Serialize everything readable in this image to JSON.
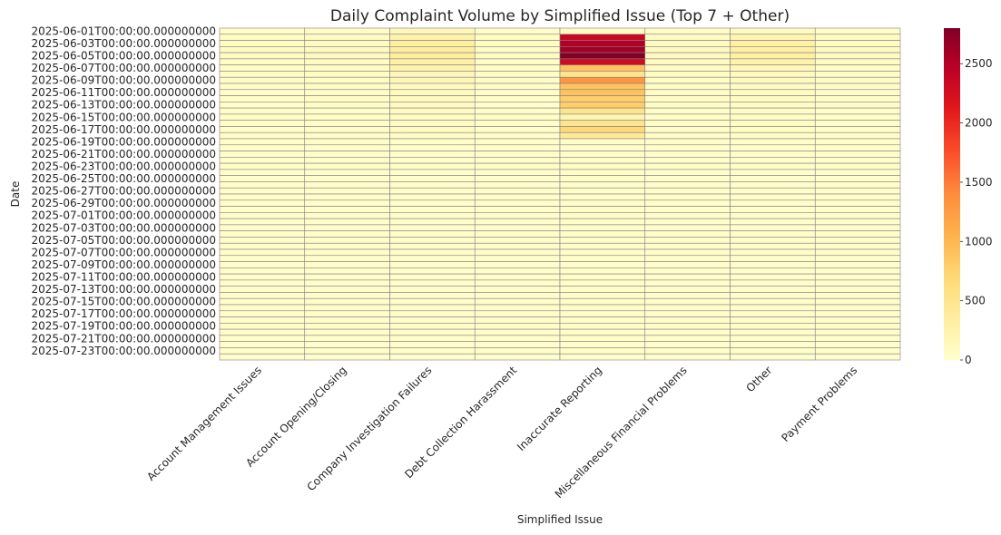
{
  "chart_data": {
    "type": "heatmap",
    "title": "Daily Complaint Volume by Simplified Issue (Top 7 + Other)",
    "xlabel": "Simplified Issue",
    "ylabel": "Date",
    "categories": [
      "Account Management Issues",
      "Account Opening/Closing",
      "Company Investigation Failures",
      "Debt Collection Harassment",
      "Inaccurate Reporting",
      "Miscellaneous Financial Problems",
      "Other",
      "Payment Problems"
    ],
    "dates": [
      "2025-06-01",
      "2025-06-02",
      "2025-06-03",
      "2025-06-04",
      "2025-06-05",
      "2025-06-06",
      "2025-06-07",
      "2025-06-08",
      "2025-06-09",
      "2025-06-10",
      "2025-06-11",
      "2025-06-12",
      "2025-06-13",
      "2025-06-14",
      "2025-06-15",
      "2025-06-16",
      "2025-06-17",
      "2025-06-18",
      "2025-06-19",
      "2025-06-20",
      "2025-06-21",
      "2025-06-22",
      "2025-06-23",
      "2025-06-24",
      "2025-06-25",
      "2025-06-26",
      "2025-06-27",
      "2025-06-28",
      "2025-06-29",
      "2025-06-30",
      "2025-07-01",
      "2025-07-02",
      "2025-07-03",
      "2025-07-04",
      "2025-07-05",
      "2025-07-06",
      "2025-07-07",
      "2025-07-08",
      "2025-07-09",
      "2025-07-10",
      "2025-07-11",
      "2025-07-12",
      "2025-07-13",
      "2025-07-14",
      "2025-07-15",
      "2025-07-16",
      "2025-07-17",
      "2025-07-18",
      "2025-07-19",
      "2025-07-20",
      "2025-07-21",
      "2025-07-22",
      "2025-07-23",
      "2025-07-24"
    ],
    "ytick_labels": [
      "2025-06-01T00:00:00.000000000",
      "2025-06-03T00:00:00.000000000",
      "2025-06-05T00:00:00.000000000",
      "2025-06-07T00:00:00.000000000",
      "2025-06-09T00:00:00.000000000",
      "2025-06-11T00:00:00.000000000",
      "2025-06-13T00:00:00.000000000",
      "2025-06-15T00:00:00.000000000",
      "2025-06-17T00:00:00.000000000",
      "2025-06-19T00:00:00.000000000",
      "2025-06-21T00:00:00.000000000",
      "2025-06-23T00:00:00.000000000",
      "2025-06-25T00:00:00.000000000",
      "2025-06-27T00:00:00.000000000",
      "2025-06-29T00:00:00.000000000",
      "2025-07-01T00:00:00.000000000",
      "2025-07-03T00:00:00.000000000",
      "2025-07-05T00:00:00.000000000",
      "2025-07-07T00:00:00.000000000",
      "2025-07-09T00:00:00.000000000",
      "2025-07-11T00:00:00.000000000",
      "2025-07-13T00:00:00.000000000",
      "2025-07-15T00:00:00.000000000",
      "2025-07-17T00:00:00.000000000",
      "2025-07-19T00:00:00.000000000",
      "2025-07-21T00:00:00.000000000",
      "2025-07-23T00:00:00.000000000"
    ],
    "values": [
      [
        40,
        60,
        150,
        40,
        90,
        60,
        90,
        40
      ],
      [
        60,
        80,
        250,
        60,
        2350,
        80,
        220,
        70
      ],
      [
        70,
        90,
        350,
        60,
        2500,
        90,
        300,
        80
      ],
      [
        70,
        90,
        350,
        60,
        2600,
        90,
        300,
        80
      ],
      [
        70,
        90,
        350,
        60,
        2800,
        90,
        300,
        80
      ],
      [
        60,
        80,
        300,
        50,
        2300,
        80,
        250,
        70
      ],
      [
        50,
        70,
        250,
        50,
        900,
        70,
        150,
        60
      ],
      [
        40,
        60,
        150,
        40,
        500,
        60,
        100,
        50
      ],
      [
        40,
        60,
        150,
        40,
        1300,
        60,
        100,
        50
      ],
      [
        30,
        50,
        100,
        30,
        900,
        50,
        80,
        40
      ],
      [
        30,
        50,
        100,
        30,
        900,
        50,
        80,
        40
      ],
      [
        30,
        50,
        100,
        30,
        800,
        50,
        80,
        40
      ],
      [
        30,
        50,
        100,
        30,
        800,
        50,
        80,
        40
      ],
      [
        20,
        30,
        80,
        20,
        500,
        30,
        60,
        30
      ],
      [
        20,
        30,
        60,
        20,
        200,
        30,
        50,
        20
      ],
      [
        20,
        30,
        80,
        20,
        500,
        30,
        60,
        30
      ],
      [
        20,
        30,
        80,
        20,
        700,
        30,
        60,
        30
      ],
      [
        20,
        30,
        60,
        20,
        400,
        30,
        50,
        20
      ],
      [
        10,
        10,
        20,
        10,
        30,
        10,
        20,
        10
      ],
      [
        10,
        10,
        20,
        10,
        30,
        10,
        20,
        10
      ],
      [
        10,
        10,
        10,
        10,
        20,
        10,
        10,
        10
      ],
      [
        10,
        10,
        10,
        10,
        20,
        10,
        10,
        10
      ],
      [
        10,
        10,
        10,
        10,
        20,
        10,
        10,
        10
      ],
      [
        10,
        10,
        10,
        10,
        20,
        10,
        10,
        10
      ],
      [
        10,
        10,
        10,
        10,
        20,
        10,
        10,
        10
      ],
      [
        10,
        10,
        10,
        10,
        20,
        10,
        10,
        10
      ],
      [
        10,
        10,
        10,
        10,
        20,
        10,
        10,
        10
      ],
      [
        10,
        10,
        10,
        10,
        20,
        10,
        10,
        10
      ],
      [
        10,
        10,
        10,
        10,
        20,
        10,
        10,
        10
      ],
      [
        10,
        10,
        10,
        10,
        20,
        10,
        10,
        10
      ],
      [
        10,
        10,
        10,
        10,
        20,
        10,
        10,
        10
      ],
      [
        10,
        10,
        10,
        10,
        20,
        10,
        10,
        10
      ],
      [
        10,
        10,
        10,
        10,
        20,
        10,
        10,
        10
      ],
      [
        10,
        10,
        10,
        10,
        20,
        10,
        10,
        10
      ],
      [
        10,
        10,
        10,
        10,
        20,
        10,
        10,
        10
      ],
      [
        10,
        10,
        10,
        10,
        20,
        10,
        10,
        10
      ],
      [
        10,
        10,
        10,
        10,
        20,
        10,
        10,
        10
      ],
      [
        10,
        10,
        10,
        10,
        20,
        10,
        10,
        10
      ],
      [
        10,
        10,
        10,
        10,
        20,
        10,
        10,
        10
      ],
      [
        10,
        10,
        10,
        10,
        20,
        10,
        10,
        10
      ],
      [
        10,
        10,
        10,
        10,
        20,
        10,
        10,
        10
      ],
      [
        10,
        10,
        10,
        10,
        20,
        10,
        10,
        10
      ],
      [
        10,
        10,
        10,
        10,
        20,
        10,
        10,
        10
      ],
      [
        10,
        10,
        10,
        10,
        20,
        10,
        10,
        10
      ],
      [
        10,
        10,
        10,
        10,
        20,
        10,
        10,
        10
      ],
      [
        10,
        10,
        10,
        10,
        20,
        10,
        10,
        10
      ],
      [
        10,
        10,
        10,
        10,
        20,
        10,
        10,
        10
      ],
      [
        10,
        10,
        10,
        10,
        20,
        10,
        10,
        10
      ],
      [
        10,
        10,
        10,
        10,
        20,
        10,
        10,
        10
      ],
      [
        10,
        10,
        10,
        10,
        20,
        10,
        10,
        10
      ],
      [
        10,
        10,
        10,
        10,
        20,
        10,
        10,
        10
      ],
      [
        10,
        10,
        10,
        10,
        20,
        10,
        10,
        10
      ],
      [
        10,
        10,
        10,
        10,
        20,
        10,
        10,
        10
      ],
      [
        10,
        10,
        10,
        10,
        20,
        10,
        10,
        10
      ]
    ],
    "colorbar": {
      "min": 0,
      "max": 2800,
      "ticks": [
        0,
        500,
        1000,
        1500,
        2000,
        2500
      ],
      "colormap": "YlOrRd"
    },
    "cell_border_color": "#808080",
    "grid": false,
    "legend": "colorbar-right"
  }
}
